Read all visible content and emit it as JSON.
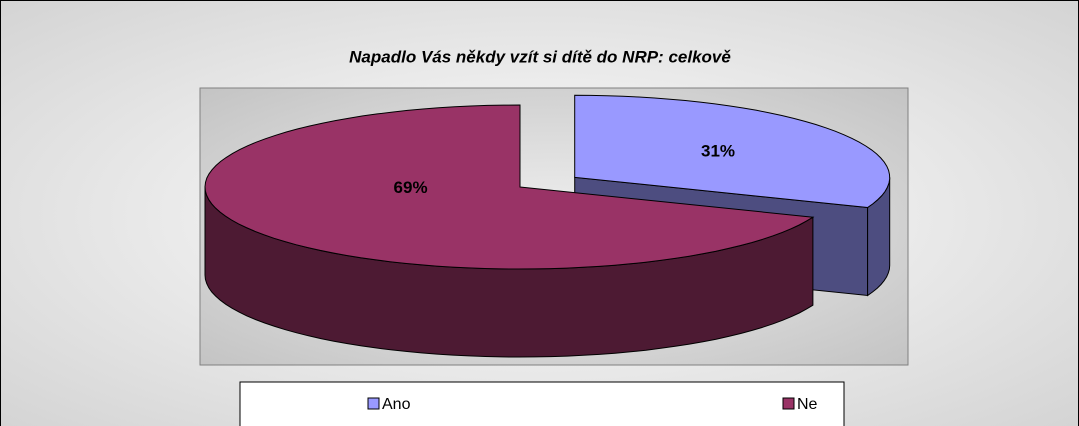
{
  "chart_data": {
    "type": "pie",
    "title": "Napadlo Vás někdy vzít si dítě do NRP: celkově",
    "categories": [
      "Ano",
      "Ne"
    ],
    "values": [
      31,
      69
    ],
    "value_labels": [
      "31%",
      "69%"
    ],
    "colors": [
      "#9999ff",
      "#993366"
    ],
    "legend": "bottom"
  }
}
